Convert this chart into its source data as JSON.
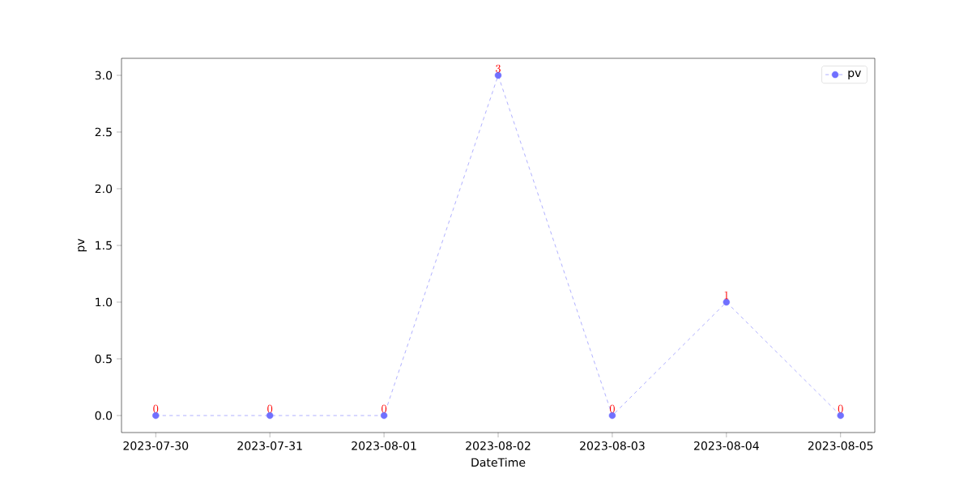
{
  "chart_data": {
    "type": "line",
    "xlabel": "DateTime",
    "ylabel": "pv",
    "categories": [
      "2023-07-30",
      "2023-07-31",
      "2023-08-01",
      "2023-08-02",
      "2023-08-03",
      "2023-08-04",
      "2023-08-05"
    ],
    "series": [
      {
        "name": "pv",
        "color": "#7070ff",
        "values": [
          0,
          0,
          0,
          3,
          0,
          1,
          0
        ]
      }
    ],
    "ylim": [
      -0.15,
      3.15
    ],
    "yticks": [
      {
        "value": 0,
        "label": "0.0"
      },
      {
        "value": 0.5,
        "label": "0.5"
      },
      {
        "value": 1,
        "label": "1.0"
      },
      {
        "value": 1.5,
        "label": "1.5"
      },
      {
        "value": 2,
        "label": "2.0"
      },
      {
        "value": 2.5,
        "label": "2.5"
      },
      {
        "value": 3,
        "label": "3.0"
      }
    ],
    "data_labels": true,
    "legend": "top right",
    "grid": false,
    "marker": "circle",
    "line_style": "dashed"
  }
}
